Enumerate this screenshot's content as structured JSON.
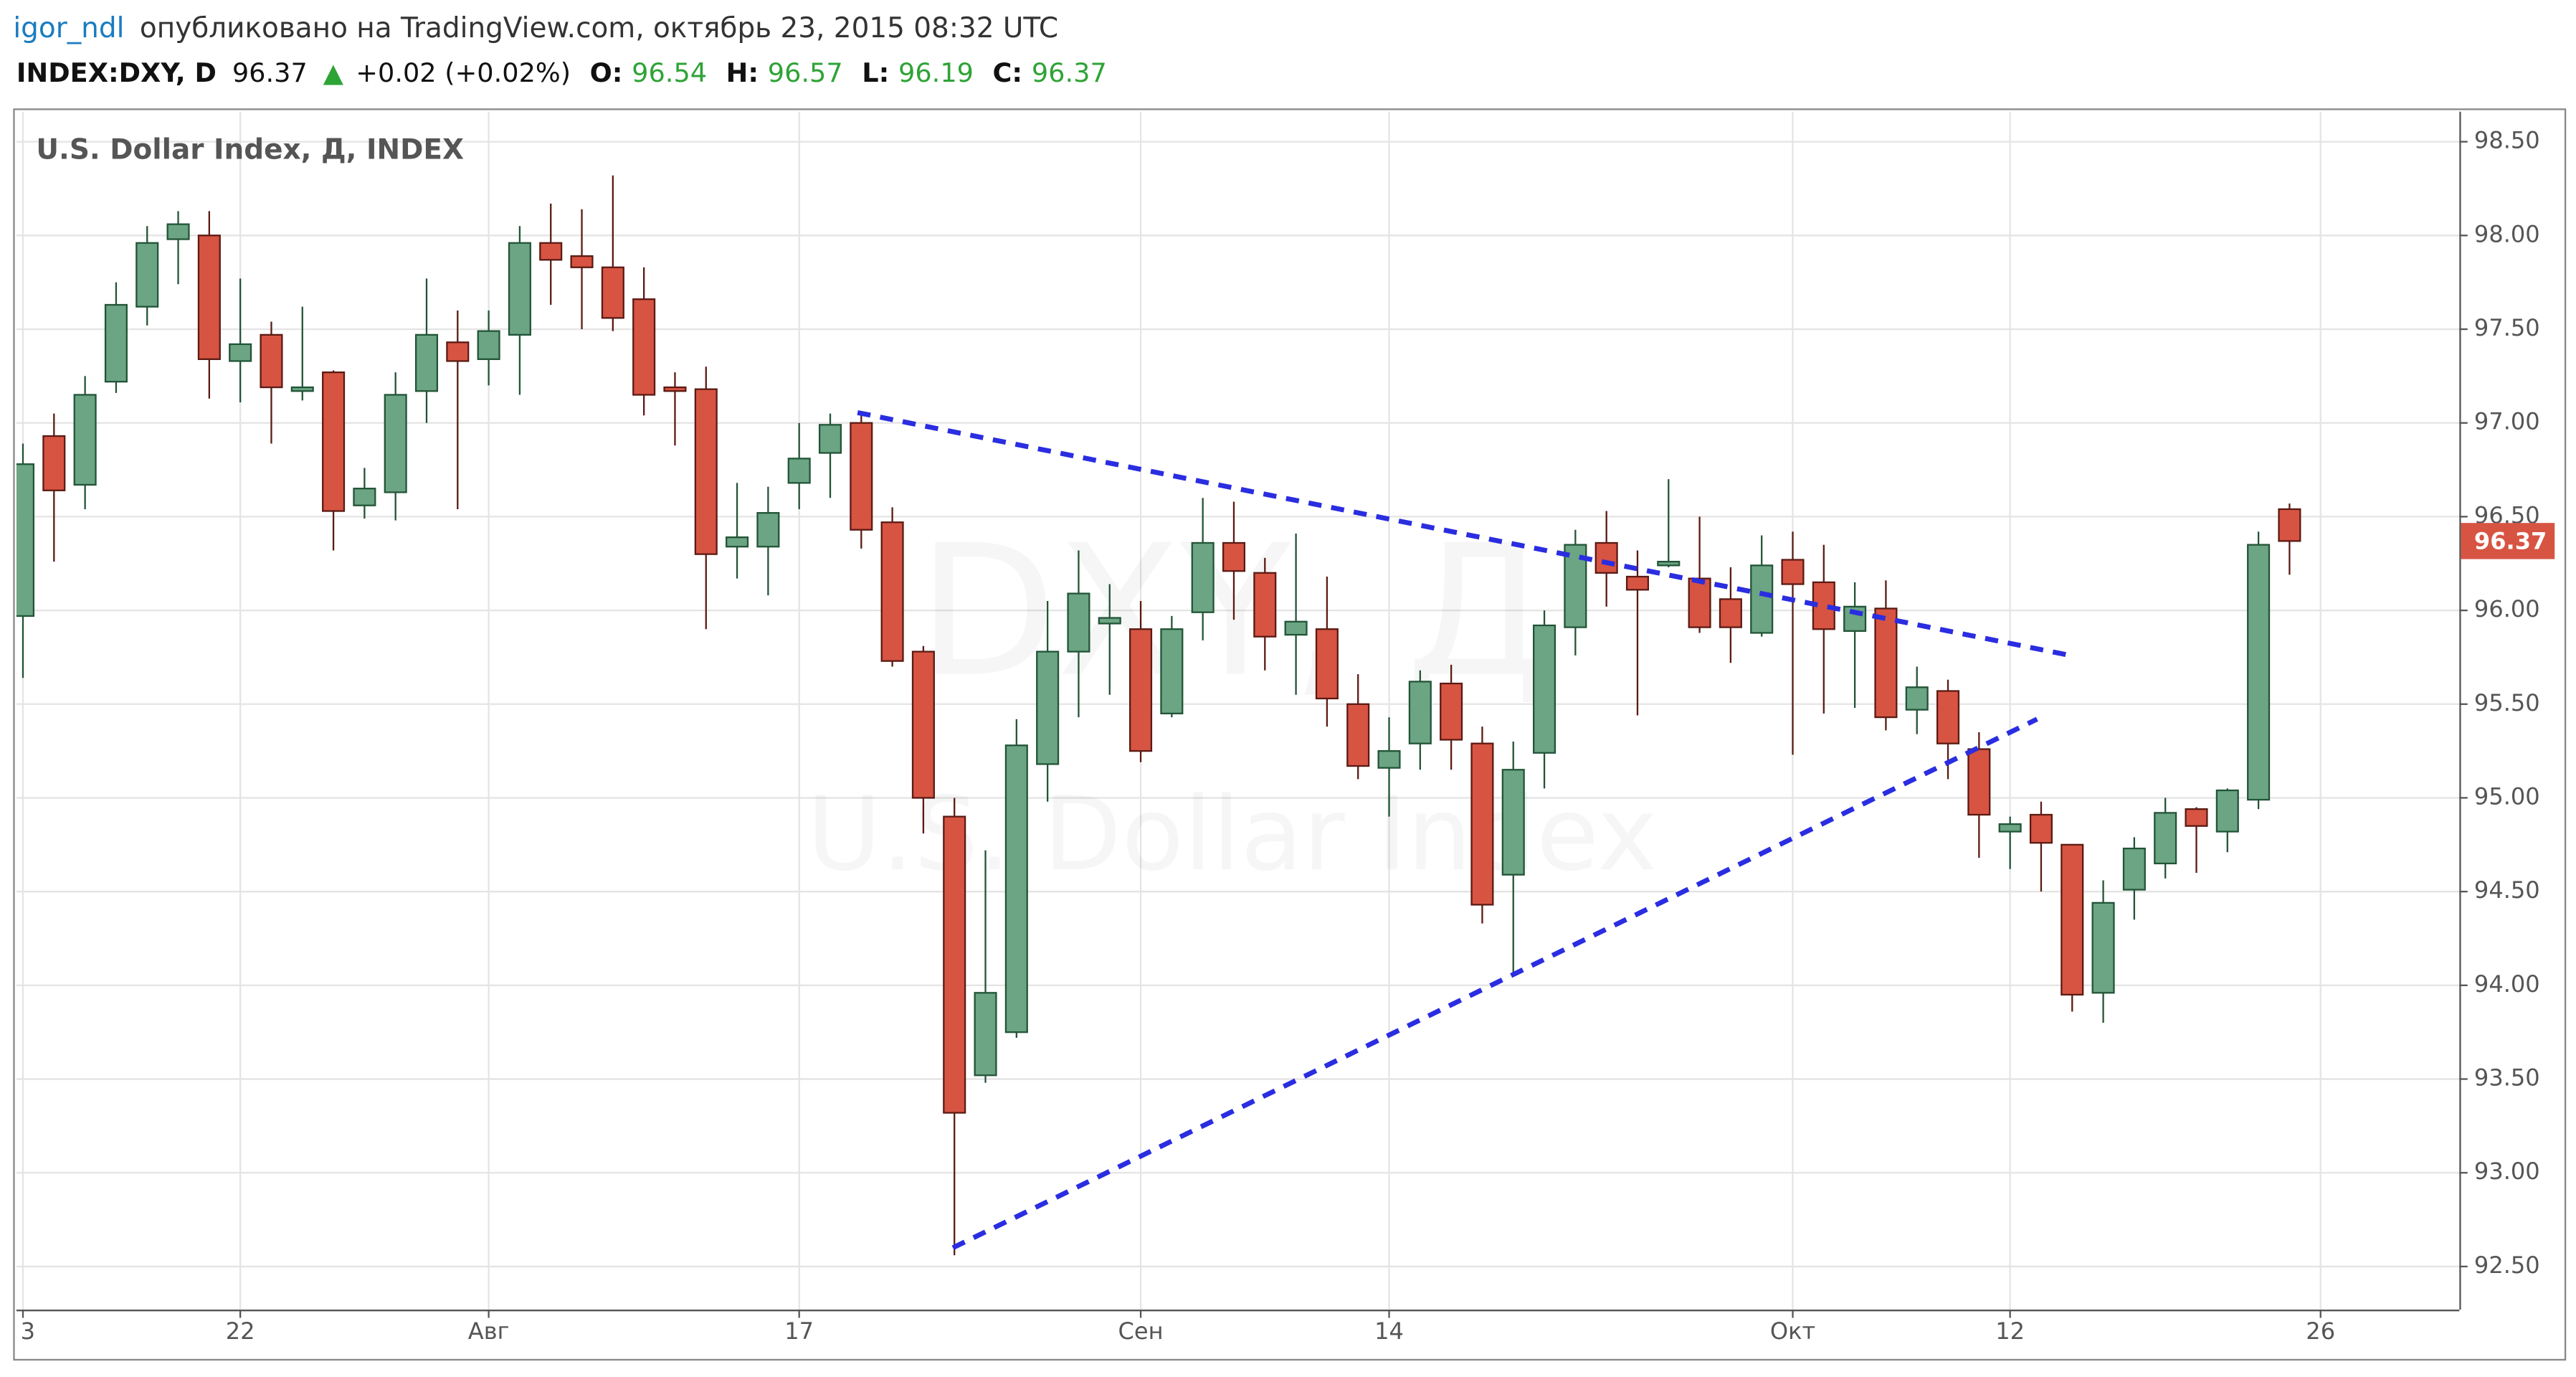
{
  "header": {
    "user": "igor_ndl",
    "published": "опубликовано на TradingView.com, октябрь 23, 2015 08:32 UTC",
    "symbol": "INDEX:DXY, D",
    "change": "+0.02 (+0.02%)",
    "o_label": "O:",
    "h_label": "H:",
    "l_label": "L:",
    "c_label": "C:"
  },
  "chart_data": {
    "type": "candlestick",
    "title": "U.S. Dollar Index, Д, INDEX",
    "watermark": [
      "DXY, Д",
      "U.S. Dollar Index"
    ],
    "open": [
      95.97,
      96.93,
      96.67,
      97.22,
      97.62,
      97.98,
      98.0,
      97.33,
      97.47,
      97.17,
      97.27,
      96.56,
      96.63,
      97.17,
      97.43,
      97.34,
      97.47,
      97.96,
      97.89,
      97.83,
      97.66,
      97.19,
      97.18,
      96.34,
      96.34,
      96.68,
      96.84,
      97.0,
      96.47,
      95.78,
      94.9,
      93.52,
      93.75,
      95.18,
      95.78,
      95.93,
      95.9,
      95.45,
      95.99,
      96.36,
      96.2,
      95.87,
      95.9,
      95.5,
      95.16,
      95.29,
      95.61,
      95.29,
      94.59,
      95.24,
      95.91,
      96.36,
      96.18,
      96.24,
      96.17,
      96.06,
      95.88,
      96.27,
      96.15,
      95.89,
      96.01,
      95.47,
      95.57,
      95.26,
      94.82,
      94.91,
      94.75,
      93.96,
      94.51,
      94.65,
      94.94,
      94.82,
      94.99,
      96.54
    ],
    "high": [
      96.89,
      97.05,
      97.25,
      97.75,
      98.05,
      98.13,
      98.13,
      97.77,
      97.54,
      97.62,
      97.28,
      96.76,
      97.27,
      97.77,
      97.6,
      97.6,
      98.05,
      98.17,
      98.14,
      98.32,
      97.83,
      97.27,
      97.3,
      96.68,
      96.66,
      97.0,
      97.05,
      97.05,
      96.55,
      95.81,
      95.0,
      94.72,
      95.42,
      96.05,
      96.32,
      96.14,
      96.05,
      95.97,
      96.6,
      96.58,
      96.28,
      96.41,
      96.18,
      95.66,
      95.43,
      95.68,
      95.71,
      95.38,
      95.3,
      96.0,
      96.43,
      96.53,
      96.32,
      96.7,
      96.5,
      96.23,
      96.4,
      96.42,
      96.35,
      96.15,
      96.16,
      95.7,
      95.63,
      95.35,
      94.9,
      94.98,
      94.75,
      94.56,
      94.79,
      95.0,
      94.95,
      95.05,
      96.42,
      96.57
    ],
    "low": [
      95.64,
      96.26,
      96.54,
      97.16,
      97.52,
      97.74,
      97.13,
      97.11,
      96.89,
      97.12,
      96.32,
      96.49,
      96.48,
      97.0,
      96.54,
      97.2,
      97.15,
      97.63,
      97.5,
      97.49,
      97.04,
      96.88,
      95.9,
      96.17,
      96.08,
      96.54,
      96.6,
      96.33,
      95.7,
      94.81,
      92.56,
      93.48,
      93.72,
      94.98,
      95.43,
      95.55,
      95.19,
      95.43,
      95.84,
      95.95,
      95.68,
      95.55,
      95.38,
      95.1,
      94.9,
      95.15,
      95.15,
      94.33,
      94.05,
      95.05,
      95.76,
      96.02,
      95.44,
      96.23,
      95.88,
      95.72,
      95.86,
      95.23,
      95.45,
      95.48,
      95.36,
      95.34,
      95.1,
      94.68,
      94.62,
      94.5,
      93.86,
      93.8,
      94.35,
      94.57,
      94.6,
      94.71,
      94.94,
      96.19
    ],
    "close": [
      96.78,
      96.64,
      97.15,
      97.63,
      97.96,
      98.06,
      97.34,
      97.42,
      97.19,
      97.19,
      96.53,
      96.65,
      97.15,
      97.47,
      97.33,
      97.49,
      97.96,
      97.87,
      97.83,
      97.56,
      97.15,
      97.17,
      96.3,
      96.39,
      96.52,
      96.81,
      96.99,
      96.43,
      95.73,
      95.0,
      93.32,
      93.96,
      95.28,
      95.78,
      96.09,
      95.96,
      95.25,
      95.9,
      96.36,
      96.21,
      95.86,
      95.94,
      95.53,
      95.17,
      95.25,
      95.62,
      95.31,
      94.43,
      95.15,
      95.92,
      96.35,
      96.2,
      96.11,
      96.26,
      95.91,
      95.91,
      96.24,
      96.14,
      95.9,
      96.02,
      95.43,
      95.59,
      95.29,
      94.91,
      94.86,
      94.76,
      93.95,
      94.44,
      94.73,
      94.92,
      94.85,
      95.04,
      96.35,
      96.37
    ],
    "up_color": "#6ba583",
    "up_border": "#225437",
    "down_color": "#d75442",
    "down_border": "#5b1a13",
    "ylim": [
      92.27,
      98.66
    ],
    "yticks": [
      {
        "value": 92.5,
        "label": "92.50"
      },
      {
        "value": 93,
        "label": "93.00"
      },
      {
        "value": 93.5,
        "label": "93.50"
      },
      {
        "value": 94,
        "label": "94.00"
      },
      {
        "value": 94.5,
        "label": "94.50"
      },
      {
        "value": 95,
        "label": "95.00"
      },
      {
        "value": 95.5,
        "label": "95.50"
      },
      {
        "value": 96,
        "label": "96.00"
      },
      {
        "value": 96.5,
        "label": "96.50"
      },
      {
        "value": 97,
        "label": "97.00"
      },
      {
        "value": 97.5,
        "label": "97.50"
      },
      {
        "value": 98,
        "label": "98.00"
      },
      {
        "value": 98.5,
        "label": "98.50"
      }
    ],
    "xlim": [
      -0.21,
      78.47
    ],
    "xticks": [
      {
        "value": 0,
        "label": "3"
      },
      {
        "value": 7,
        "label": "22"
      },
      {
        "value": 15,
        "label": "Авг"
      },
      {
        "value": 25,
        "label": "17"
      },
      {
        "value": 36,
        "label": "Сен"
      },
      {
        "value": 44,
        "label": "14"
      },
      {
        "value": 57,
        "label": "Окт"
      },
      {
        "value": 64,
        "label": "12"
      },
      {
        "value": 74,
        "label": "26"
      }
    ],
    "grid": true,
    "trendlines": [
      {
        "color": "#2a2de0",
        "x": [
          26.88,
          65.93
        ],
        "y": [
          97.055,
          95.76
        ]
      },
      {
        "color": "#2a2de0",
        "x": [
          29.95,
          64.87
        ],
        "y": [
          92.6,
          95.42
        ]
      }
    ]
  }
}
